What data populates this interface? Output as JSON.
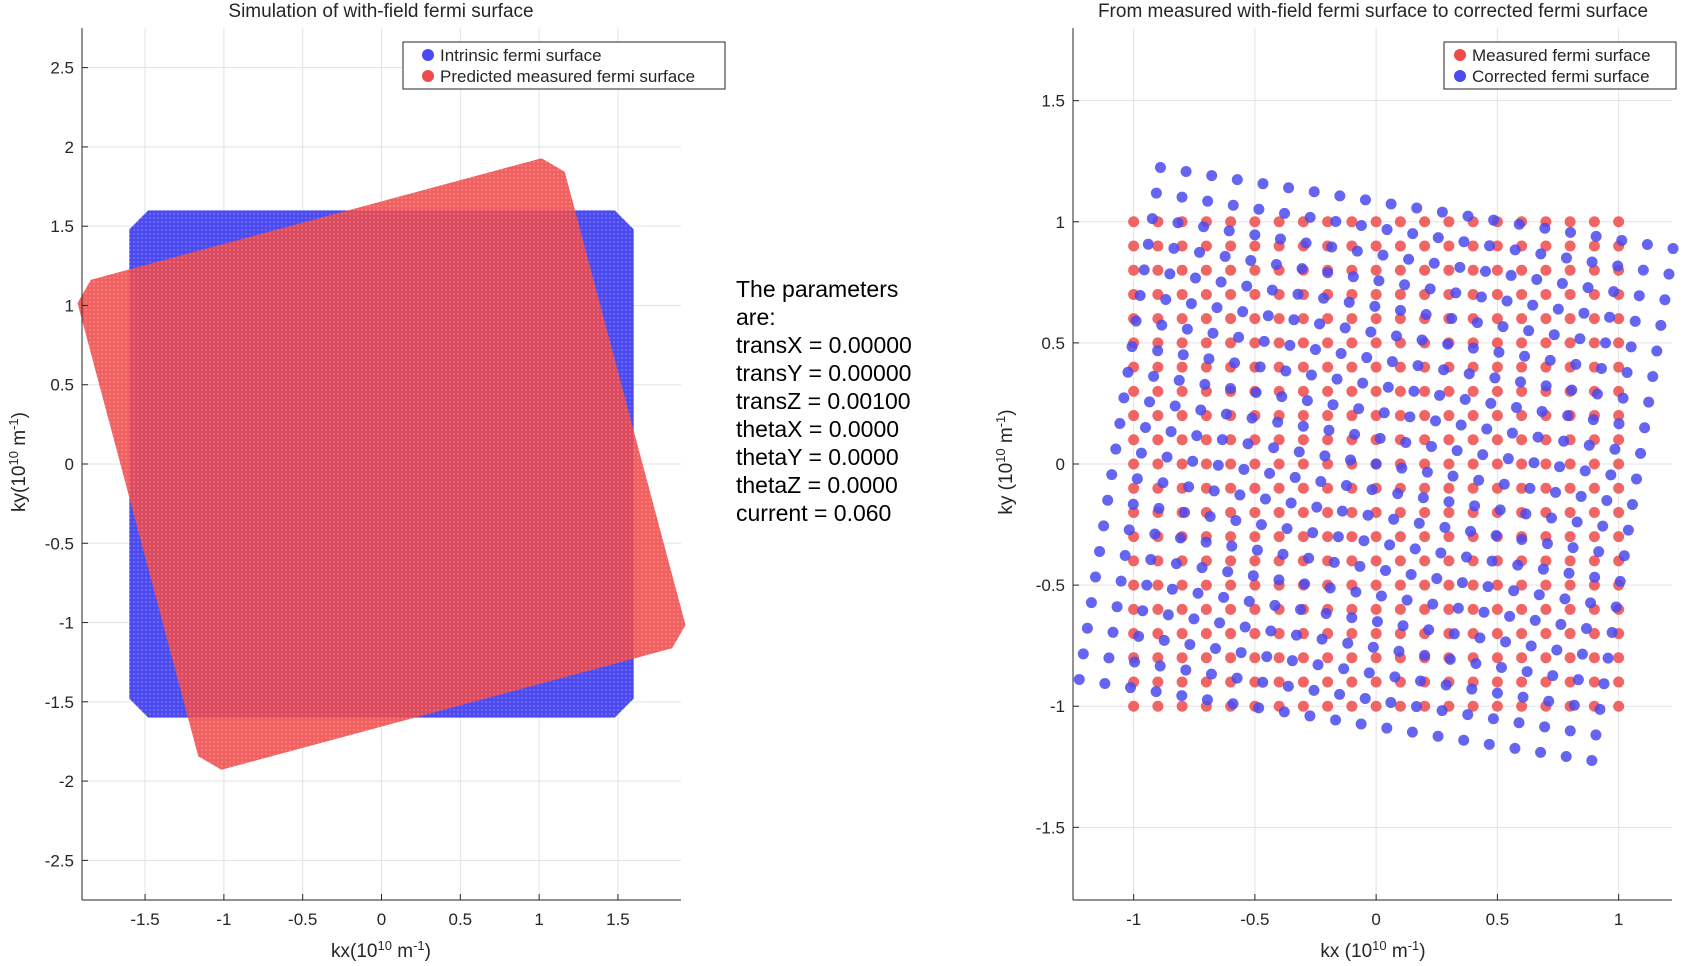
{
  "chart_data": [
    {
      "type": "scatter",
      "title": "Simulation of with-field fermi surface",
      "xlabel": "kx(10^10 m^-1)",
      "ylabel": "ky(10^10 m^-1)",
      "xlim": [
        -1.9,
        1.9
      ],
      "ylim": [
        -2.75,
        2.75
      ],
      "xticks": [
        -1.5,
        -1,
        -0.5,
        0,
        0.5,
        1,
        1.5
      ],
      "yticks": [
        -2.5,
        -2,
        -1.5,
        -1,
        -0.5,
        0,
        0.5,
        1,
        1.5,
        2,
        2.5
      ],
      "xtick_labels": [
        "-1.5",
        "-1",
        "-0.5",
        "0",
        "0.5",
        "1",
        "1.5"
      ],
      "ytick_labels": [
        "-2.5",
        "-2",
        "-1.5",
        "-1",
        "-0.5",
        "0",
        "0.5",
        "1",
        "1.5",
        "2",
        "2.5"
      ],
      "grid": true,
      "legend_position": "top-right",
      "series": [
        {
          "name": "Intrinsic fermi surface",
          "color": "#4a4af0",
          "shape": "octagon",
          "half_width": 1.6,
          "corner_cut": 0.12,
          "rotation_deg": 0
        },
        {
          "name": "Predicted measured fermi surface",
          "color": "#f04a4a",
          "shape": "octagon",
          "center": [
            0,
            0
          ],
          "half_width": 1.6,
          "corner_cut": 0.12,
          "rotation_deg": 15
        }
      ]
    },
    {
      "type": "scatter",
      "title": "From measured with-field fermi surface to corrected fermi surface",
      "xlabel": "kx (10^10 m^-1)",
      "ylabel": "ky (10^10 m^-1)",
      "xlim": [
        -1.25,
        1.22
      ],
      "ylim": [
        -1.8,
        1.8
      ],
      "xticks": [
        -1,
        -0.5,
        0,
        0.5,
        1
      ],
      "yticks": [
        -1.5,
        -1,
        -0.5,
        0,
        0.5,
        1,
        1.5
      ],
      "xtick_labels": [
        "-1",
        "-0.5",
        "0",
        "0.5",
        "1"
      ],
      "ytick_labels": [
        "-1.5",
        "-1",
        "-0.5",
        "0",
        "0.5",
        "1",
        "1.5"
      ],
      "grid": true,
      "legend_position": "top-right",
      "series": [
        {
          "name": "Measured fermi surface",
          "color": "#f04a4a",
          "grid_range": [
            -1,
            1
          ],
          "grid_step": 0.1
        },
        {
          "name": "Corrected fermi surface",
          "color": "#4a4af0",
          "grid_range": [
            -1,
            1
          ],
          "grid_step": 0.1,
          "rotation_deg": -9,
          "scale": 1.07,
          "offset": [
            0,
            0
          ]
        }
      ]
    }
  ],
  "params": {
    "lines": [
      "The parameters",
      "are:",
      "transX = 0.00000",
      "transY = 0.00000",
      "transZ = 0.00100",
      "thetaX = 0.0000",
      "thetaY = 0.0000",
      "thetaZ = 0.0000",
      "current = 0.060"
    ]
  }
}
